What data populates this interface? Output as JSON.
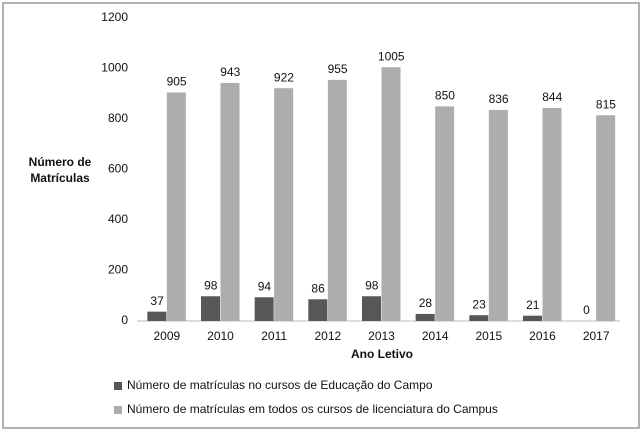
{
  "chart_data": {
    "type": "bar",
    "x_label": "Ano Letivo",
    "y_label": "Número de Matrículas",
    "categories": [
      "2009",
      "2010",
      "2011",
      "2012",
      "2013",
      "2014",
      "2015",
      "2016",
      "2017"
    ],
    "series": [
      {
        "name": "Número de matrículas no cursos de Educação do Campo",
        "color": "#575757",
        "values": [
          37,
          98,
          94,
          86,
          98,
          28,
          23,
          21,
          0
        ]
      },
      {
        "name": "Número de matrículas em todos os cursos de licenciatura do Campus",
        "color": "#adadad",
        "values": [
          905,
          943,
          922,
          955,
          1005,
          850,
          836,
          844,
          815
        ]
      }
    ],
    "ylim": [
      0,
      1200
    ],
    "yticks": [
      0,
      200,
      400,
      600,
      800,
      1000,
      1200
    ],
    "grid": false,
    "legend": "bottom"
  }
}
